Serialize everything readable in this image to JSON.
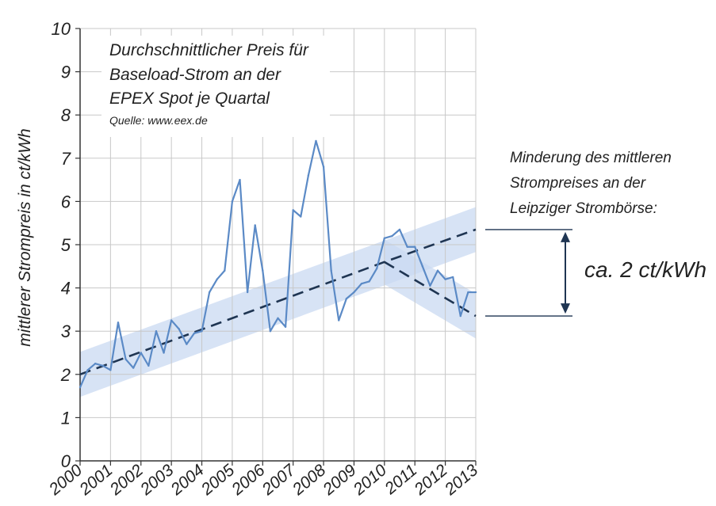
{
  "chart_data": {
    "type": "line",
    "title_lines": [
      "Durchschnittlicher Preis für",
      "Baseload-Strom an der",
      "EPEX Spot je Quartal"
    ],
    "source": "Quelle: www.eex.de",
    "xlabel": "",
    "ylabel": "mittlerer Strompreis in ct/kWh",
    "ylim": [
      0,
      10
    ],
    "xlim": [
      2000,
      2013
    ],
    "y_ticks": [
      "0",
      "1",
      "2",
      "3",
      "4",
      "5",
      "6",
      "7",
      "8",
      "9",
      "10"
    ],
    "x_ticks": [
      "2000",
      "2001",
      "2002",
      "2003",
      "2004",
      "2005",
      "2006",
      "2007",
      "2008",
      "2009",
      "2010",
      "2011",
      "2012",
      "2013"
    ],
    "grid": true,
    "series": [
      {
        "color": "#5b8ac6",
        "x": [
          2000,
          2000.25,
          2000.5,
          2000.75,
          2001,
          2001.25,
          2001.5,
          2001.75,
          2002,
          2002.25,
          2002.5,
          2002.75,
          2003,
          2003.25,
          2003.5,
          2003.75,
          2004,
          2004.25,
          2004.5,
          2004.75,
          2005,
          2005.25,
          2005.5,
          2005.75,
          2006,
          2006.25,
          2006.5,
          2006.75,
          2007,
          2007.25,
          2007.5,
          2007.75,
          2008,
          2008.25,
          2008.5,
          2008.75,
          2009,
          2009.25,
          2009.5,
          2009.75,
          2010,
          2010.25,
          2010.5,
          2010.75,
          2011,
          2011.25,
          2011.5,
          2011.75,
          2012,
          2012.25,
          2012.5,
          2012.75,
          2013
        ],
        "values": [
          1.7,
          2.1,
          2.25,
          2.2,
          2.1,
          3.2,
          2.35,
          2.15,
          2.5,
          2.2,
          3.0,
          2.5,
          3.25,
          3.05,
          2.7,
          2.95,
          3.0,
          3.9,
          4.2,
          4.4,
          6.0,
          6.5,
          3.9,
          5.45,
          4.4,
          3.0,
          3.3,
          3.1,
          5.8,
          5.65,
          6.6,
          7.4,
          6.8,
          4.4,
          3.25,
          3.75,
          3.9,
          4.1,
          4.15,
          4.45,
          5.15,
          5.2,
          5.35,
          4.95,
          4.95,
          4.5,
          4.05,
          4.4,
          4.2,
          4.25,
          3.35,
          3.9,
          3.9
        ]
      }
    ],
    "trend_lines": [
      {
        "style": "dashed",
        "color": "#1f3552",
        "x": [
          2000,
          2010,
          2013
        ],
        "values": [
          2.0,
          4.6,
          5.35
        ]
      },
      {
        "style": "dashed",
        "color": "#1f3552",
        "x": [
          2010,
          2013
        ],
        "values": [
          4.6,
          3.35
        ]
      }
    ],
    "bands": [
      {
        "color": "#c9daf2",
        "x": [
          2000,
          2013
        ],
        "center": [
          2.0,
          5.35
        ],
        "half_width": 0.52
      },
      {
        "color": "#c9daf2",
        "x": [
          2010,
          2013
        ],
        "center": [
          4.6,
          3.35
        ],
        "half_width": 0.52
      }
    ],
    "annotation": {
      "lines": [
        "Minderung des mittleren",
        "Strompreises an der",
        "Leipziger Strombörse:"
      ],
      "value_label": "ca. 2 ct/kWh",
      "range": [
        3.35,
        5.35
      ]
    }
  }
}
